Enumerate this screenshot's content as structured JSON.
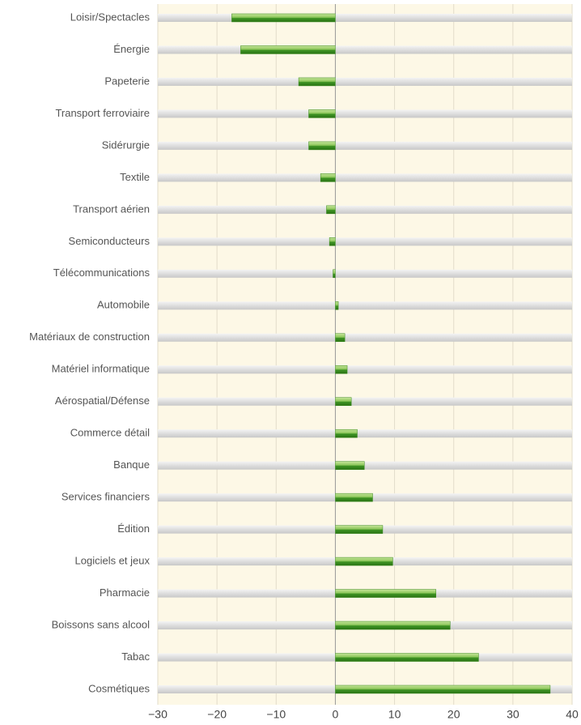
{
  "chart_data": {
    "type": "barh",
    "categories": [
      "Loisir/Spectacles",
      "Énergie",
      "Papeterie",
      "Transport ferroviaire",
      "Sidérurgie",
      "Textile",
      "Transport aérien",
      "Semiconducteurs",
      "Télécommunications",
      "Automobile",
      "Matériaux de construction",
      "Matériel informatique",
      "Aérospatial/Défense",
      "Commerce détail",
      "Banque",
      "Services financiers",
      "Édition",
      "Logiciels et jeux",
      "Pharmacie",
      "Boissons sans alcool",
      "Tabac",
      "Cosmétiques"
    ],
    "values": [
      -17.5,
      -16,
      -6.2,
      -4.5,
      -4.5,
      -2.5,
      -1.5,
      -1,
      -0.4,
      0.5,
      1.6,
      2,
      2.7,
      3.7,
      4.9,
      6.3,
      8,
      9.7,
      17,
      19.4,
      24.2,
      36.3
    ],
    "color": "#3a8a1e",
    "xlim": [
      -30,
      40
    ],
    "xticks": [
      {
        "value": -30,
        "label": "−30"
      },
      {
        "value": -20,
        "label": "−20"
      },
      {
        "value": -10,
        "label": "−10"
      },
      0,
      10,
      20,
      30,
      40
    ],
    "grid": true
  }
}
